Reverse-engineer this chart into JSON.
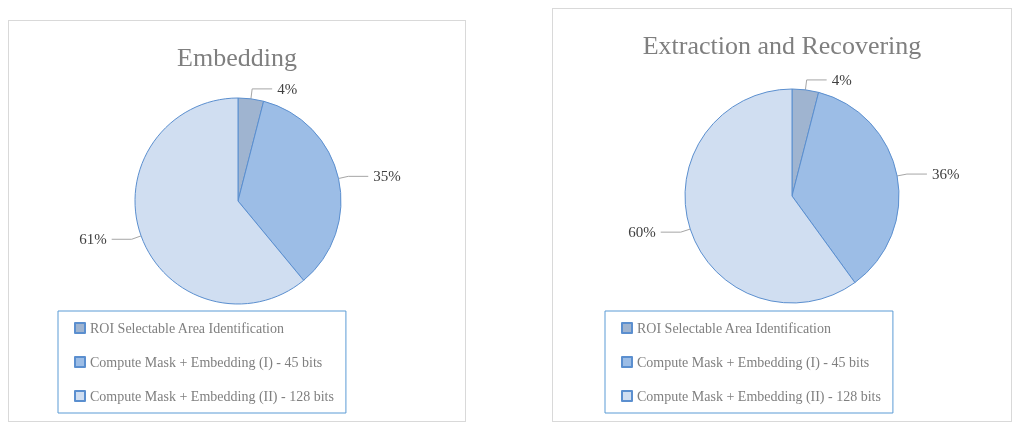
{
  "chart_data": [
    {
      "type": "pie",
      "title": "Embedding",
      "categories": [
        "ROI Selectable Area Identification",
        "Compute Mask + Embedding (I) - 45 bits",
        "Compute Mask + Embedding (II) - 128 bits"
      ],
      "values": [
        4,
        35,
        61
      ],
      "value_labels": [
        "4%",
        "35%",
        "61%"
      ],
      "colors": [
        "#9fb4d0",
        "#9cbde6",
        "#d0def1"
      ],
      "legend": "bottom"
    },
    {
      "type": "pie",
      "title": "Extraction and Recovering",
      "categories": [
        "ROI Selectable Area Identification",
        "Compute Mask + Embedding (I) - 45 bits",
        "Compute Mask + Embedding (II) - 128 bits"
      ],
      "values": [
        4,
        36,
        60
      ],
      "value_labels": [
        "4%",
        "36%",
        "60%"
      ],
      "colors": [
        "#9fb4d0",
        "#9cbde6",
        "#d0def1"
      ],
      "legend": "bottom"
    }
  ]
}
